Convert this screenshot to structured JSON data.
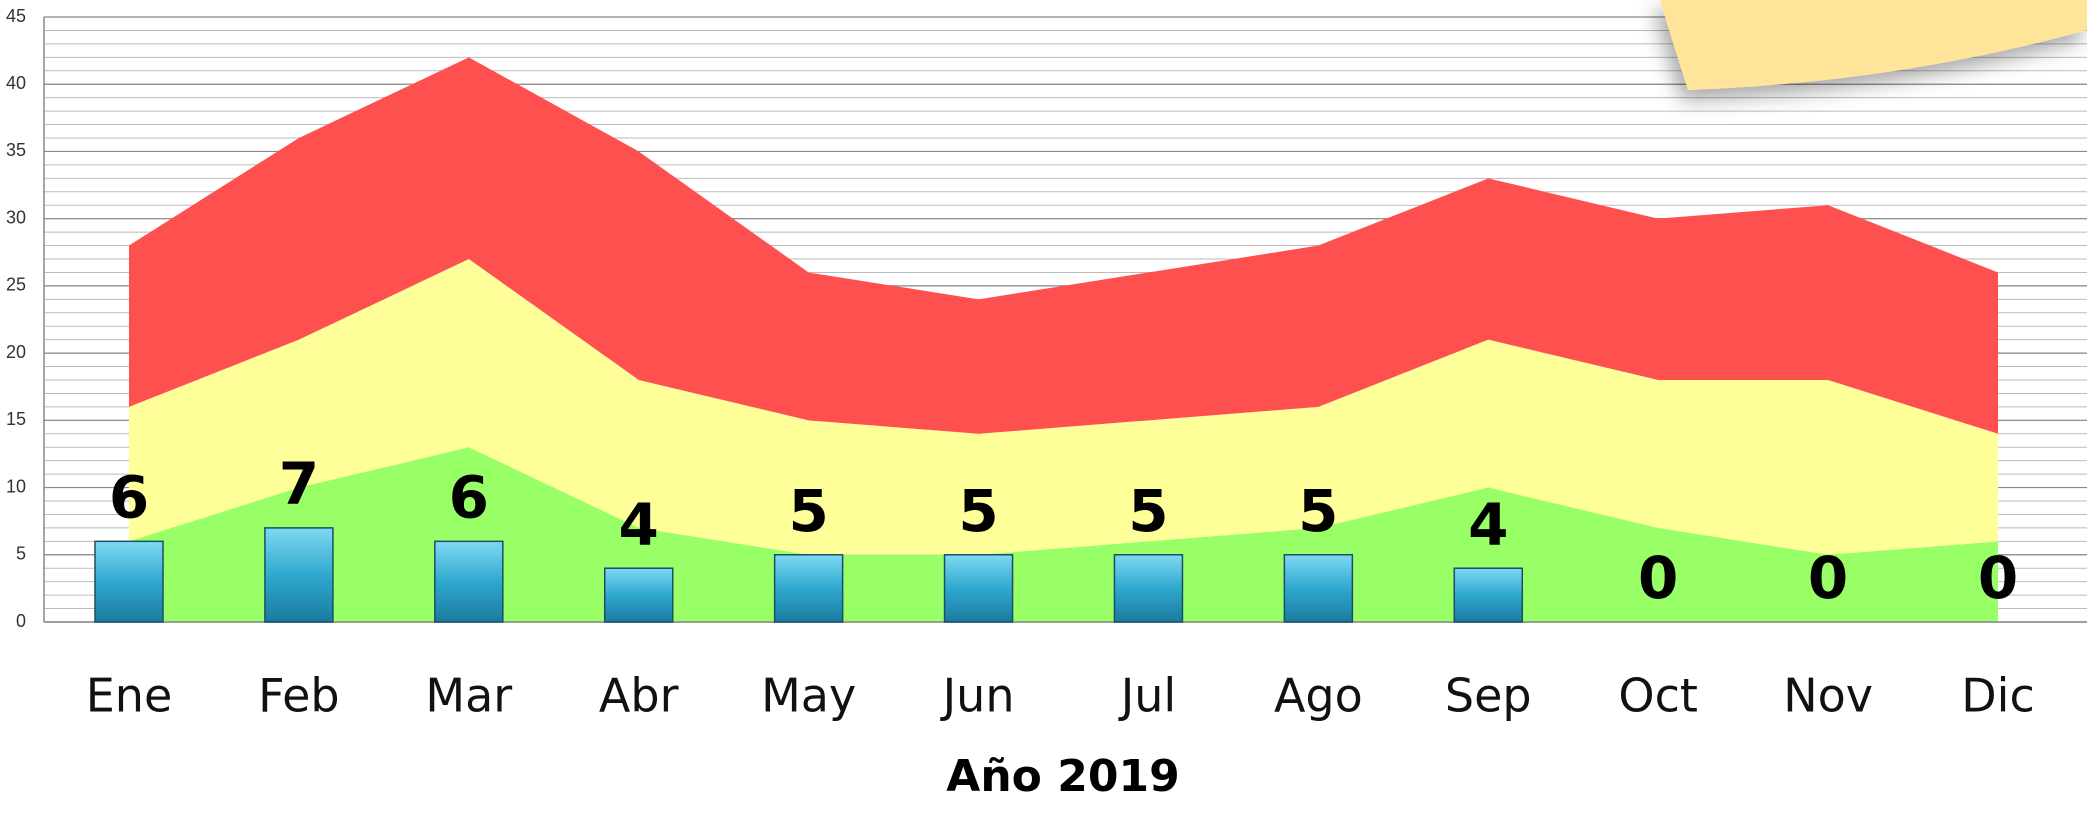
{
  "chart_data": {
    "type": "stacked-area-bar",
    "xlabel": "Año 2019",
    "categories": [
      "Ene",
      "Feb",
      "Mar",
      "Abr",
      "May",
      "Jun",
      "Jul",
      "Ago",
      "Sep",
      "Oct",
      "Nov",
      "Dic"
    ],
    "series": [
      {
        "color": "#99ff66",
        "values": [
          6,
          10,
          13,
          7,
          5,
          5,
          6,
          7,
          10,
          7,
          5,
          6
        ]
      },
      {
        "color": "#ffff99",
        "values": [
          10,
          11,
          14,
          11,
          10,
          9,
          9,
          9,
          11,
          11,
          13,
          8
        ]
      },
      {
        "color": "#ff5050",
        "values": [
          12,
          15,
          15,
          17,
          11,
          10,
          11,
          12,
          12,
          12,
          13,
          12
        ]
      }
    ],
    "bars": {
      "color": "#2fa8cf",
      "values": [
        6,
        7,
        6,
        4,
        5,
        5,
        5,
        5,
        4,
        0,
        0,
        0
      ]
    },
    "ylim": [
      0,
      45
    ],
    "yticks": [
      0,
      5,
      10,
      15,
      20,
      25,
      30,
      35,
      40,
      45
    ],
    "grid": true
  }
}
